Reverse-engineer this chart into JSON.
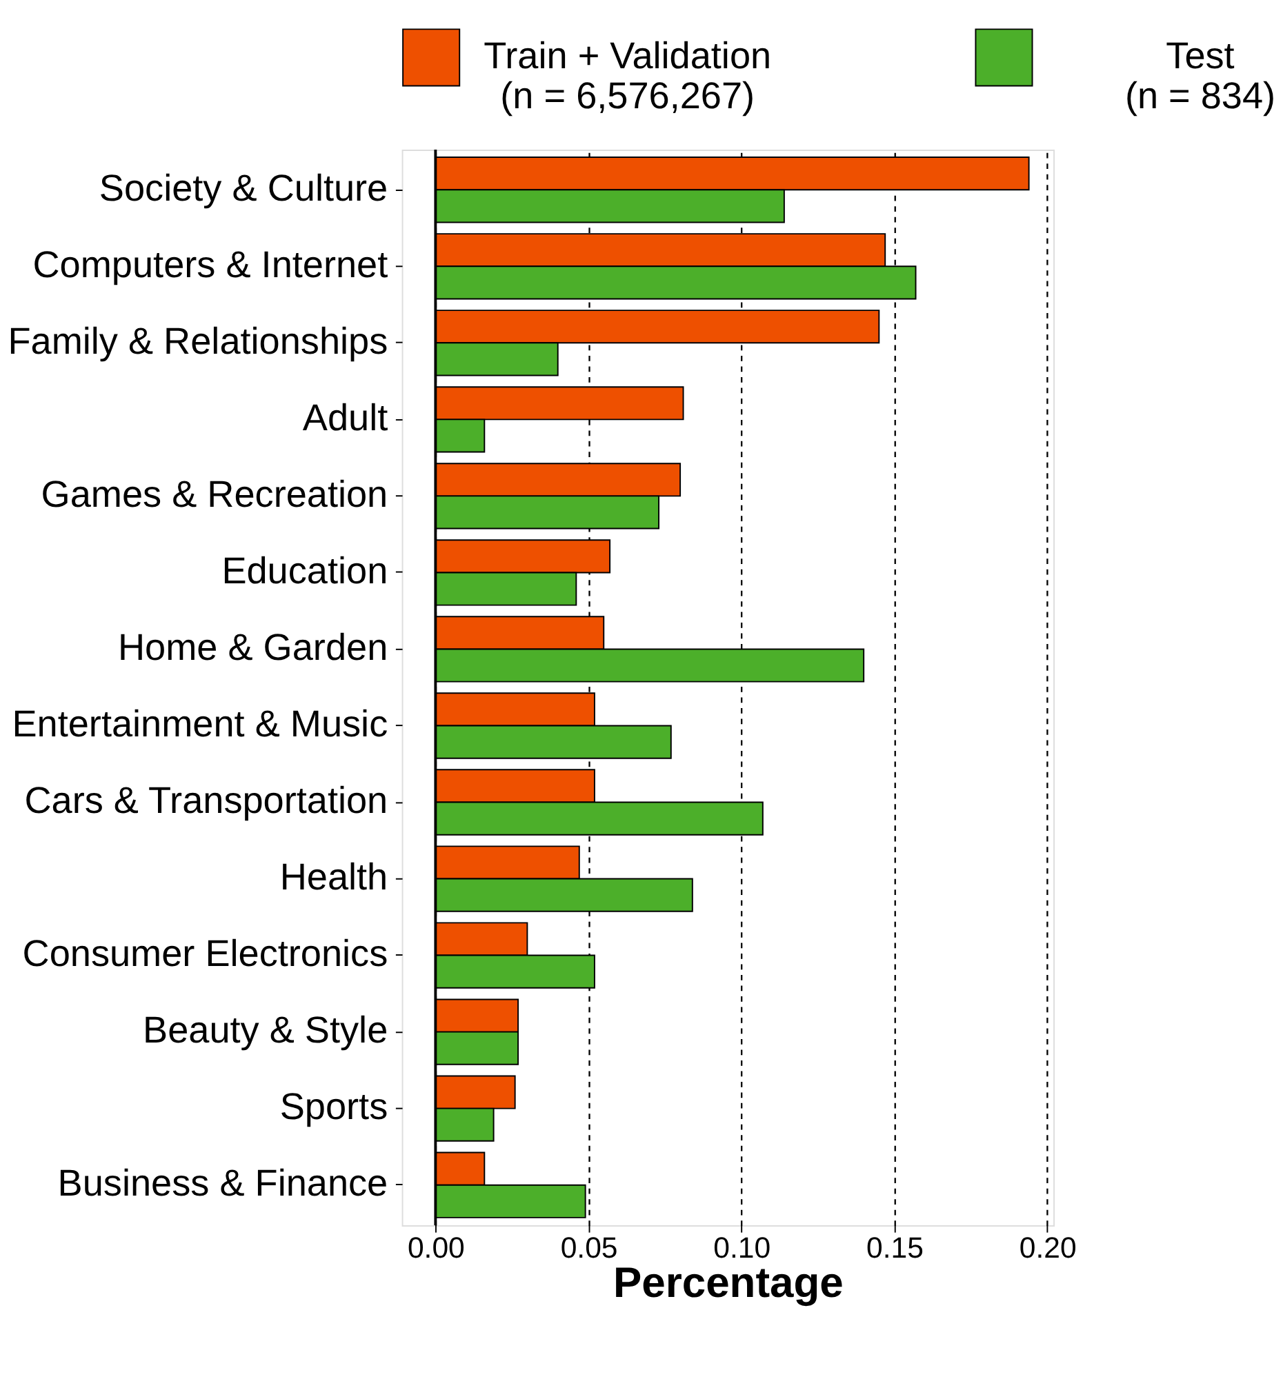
{
  "chart_data": {
    "type": "bar",
    "orientation": "horizontal",
    "xlabel": "Percentage",
    "categories": [
      "Society & Culture",
      "Computers & Internet",
      "Family & Relationships",
      "Adult",
      "Games & Recreation",
      "Education",
      "Home & Garden",
      "Entertainment & Music",
      "Cars & Transportation",
      "Health",
      "Consumer Electronics",
      "Beauty & Style",
      "Sports",
      "Business & Finance"
    ],
    "series": [
      {
        "name": "Train + Validation\n(n = 6,576,267)",
        "color": "#ee5000",
        "values": [
          0.194,
          0.147,
          0.145,
          0.081,
          0.08,
          0.057,
          0.055,
          0.052,
          0.052,
          0.047,
          0.03,
          0.027,
          0.026,
          0.016
        ]
      },
      {
        "name": "Test\n(n = 834)",
        "color": "#4caf2a",
        "values": [
          0.114,
          0.157,
          0.04,
          0.016,
          0.073,
          0.046,
          0.14,
          0.077,
          0.107,
          0.084,
          0.052,
          0.027,
          0.019,
          0.049
        ]
      }
    ],
    "xlim": [
      -0.011,
      0.202
    ],
    "xticks": [
      {
        "value": 0,
        "label": "0.00"
      },
      {
        "value": 0.05,
        "label": "0.05"
      },
      {
        "value": 0.1,
        "label": "0.10"
      },
      {
        "value": 0.15,
        "label": "0.15"
      },
      {
        "value": 0.2,
        "label": "0.20"
      }
    ],
    "grid": "x",
    "line_style": "dashed",
    "legend": "top",
    "ref_lines": [
      {
        "axis": "x",
        "value": 0,
        "line_style": "solid"
      }
    ]
  }
}
